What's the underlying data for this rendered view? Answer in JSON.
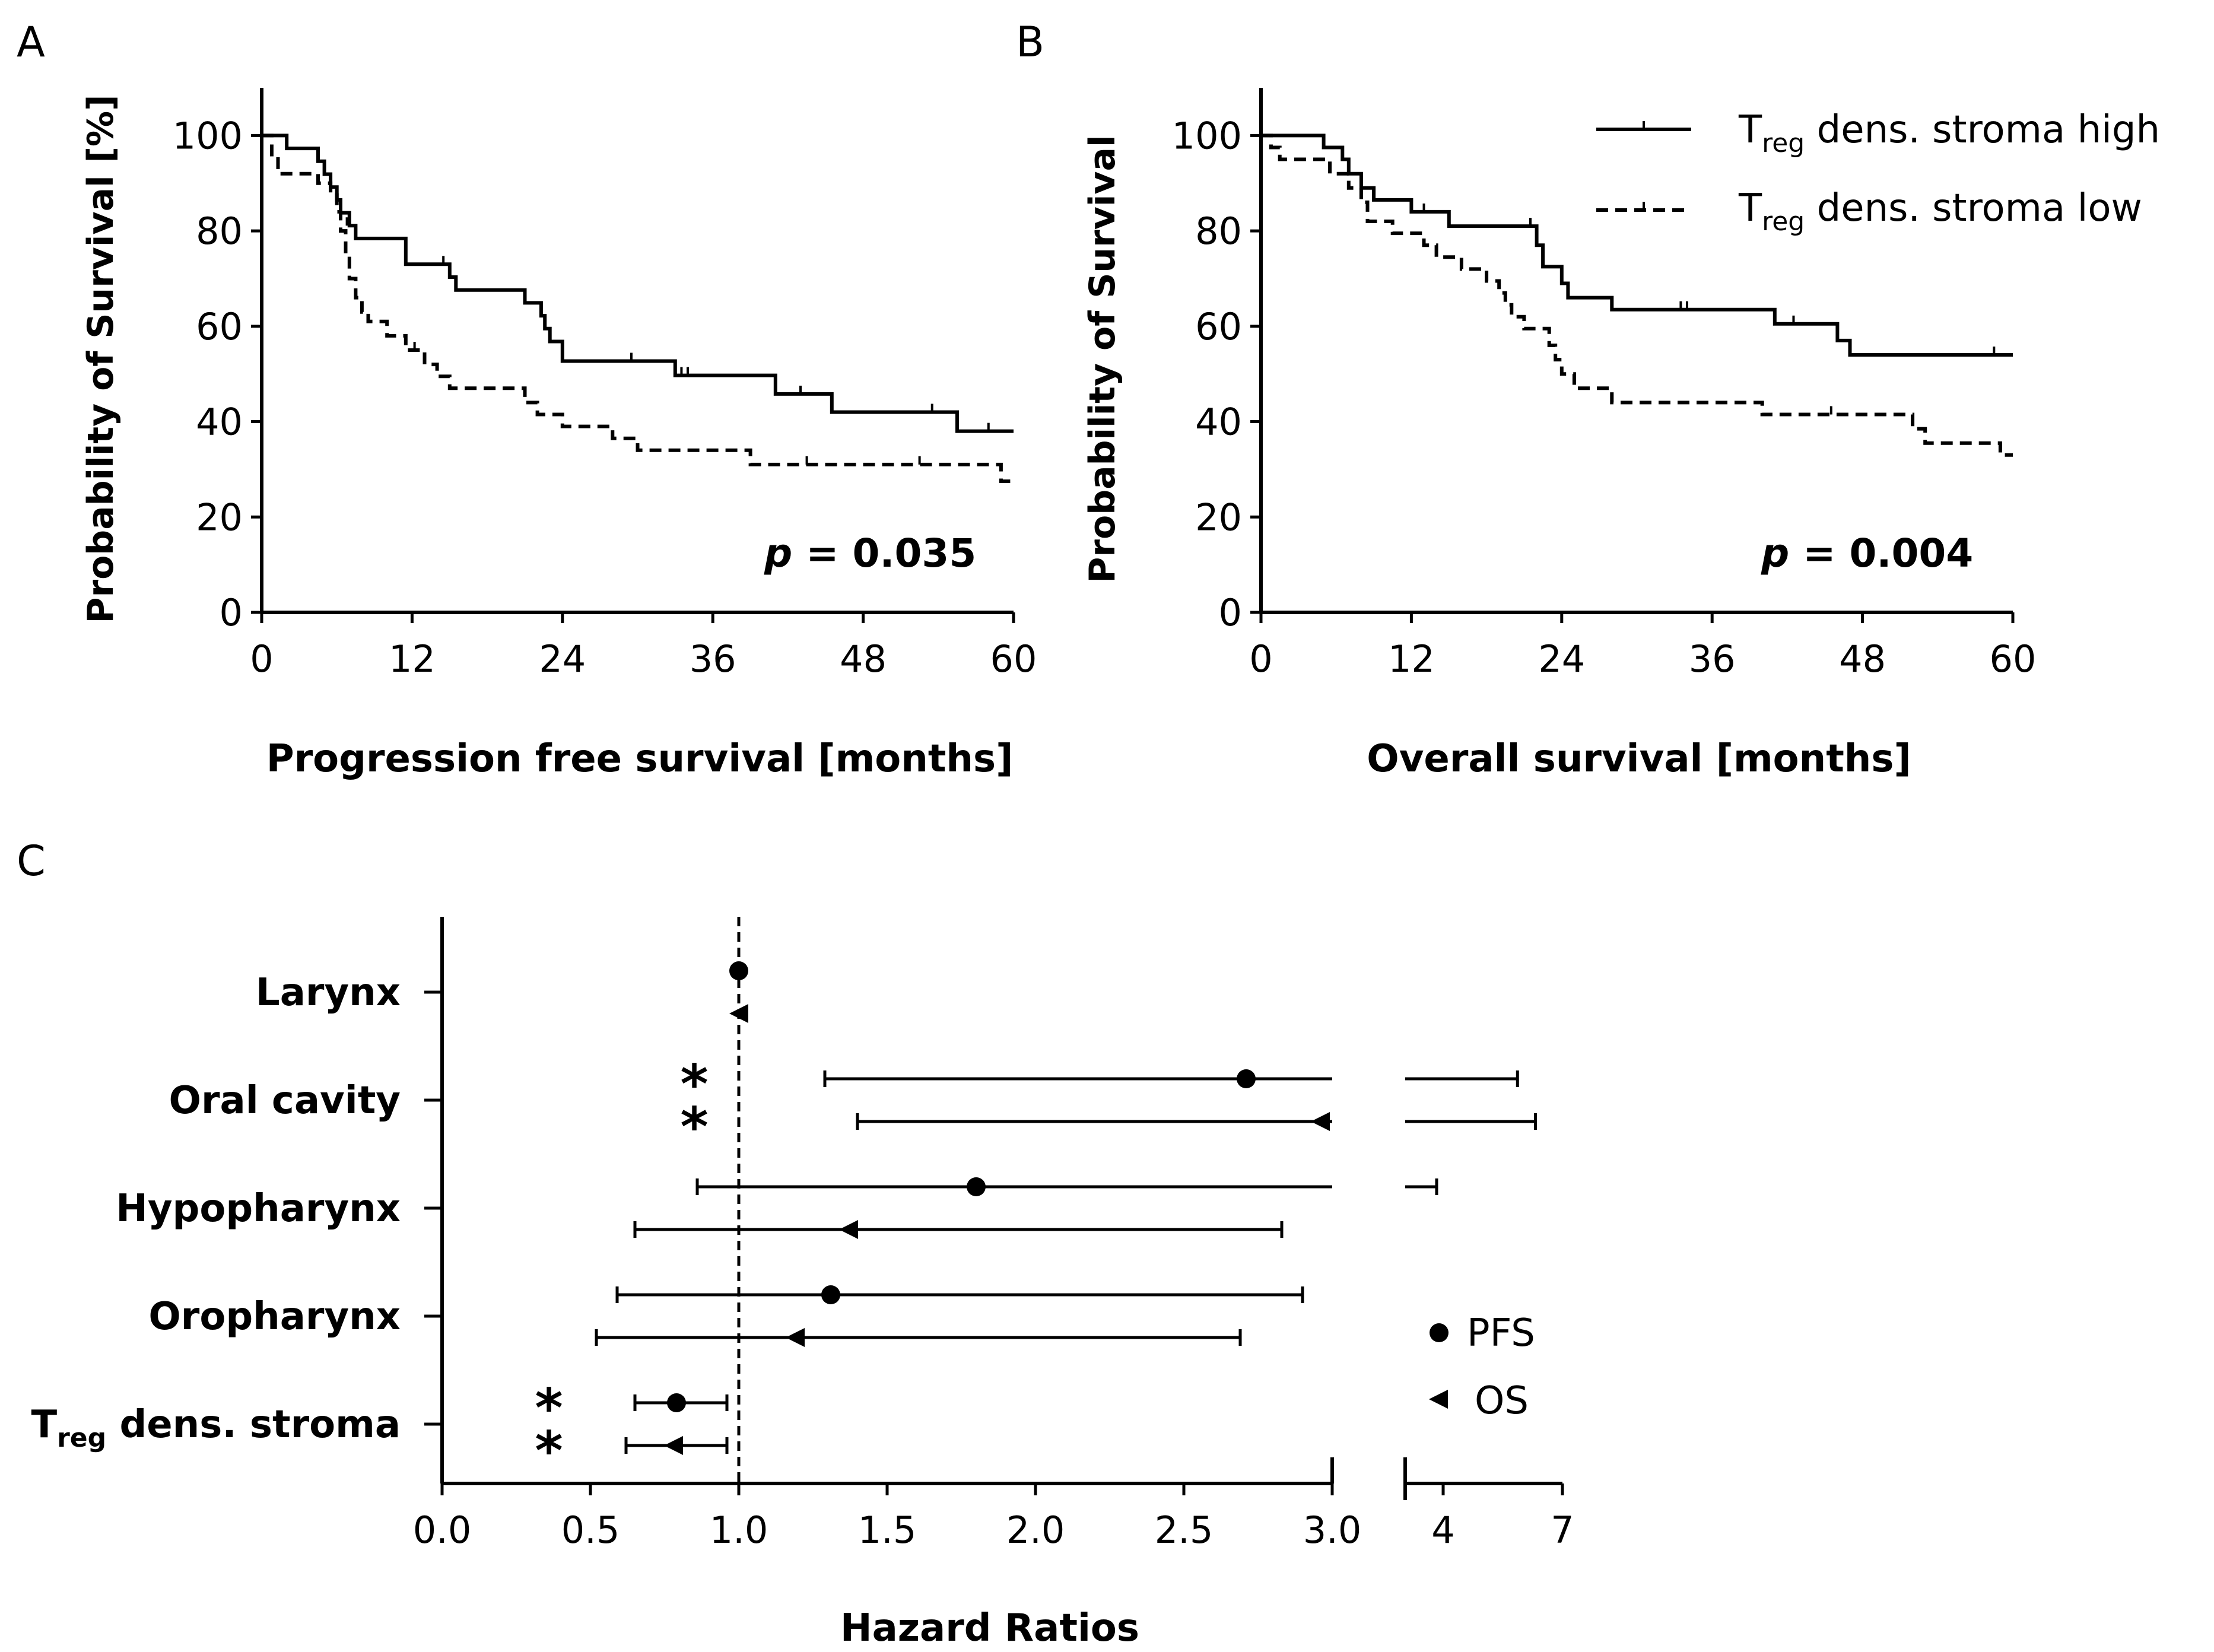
{
  "chart_data": [
    {
      "id": "A",
      "panel_label": "A",
      "type": "line",
      "subtype": "kaplan-meier",
      "xlabel": "Progression free survival [months]",
      "ylabel": "Probability of Survival [%]",
      "xlim": [
        0,
        60
      ],
      "ylim": [
        0,
        110
      ],
      "xticks": [
        0,
        12,
        24,
        36,
        48,
        60
      ],
      "yticks": [
        0,
        20,
        40,
        60,
        80,
        100
      ],
      "annotation": {
        "prefix": "p",
        "text": " = 0.035"
      },
      "series": [
        {
          "name": "high",
          "style": "solid",
          "steps": [
            [
              0,
              100
            ],
            [
              2,
              100
            ],
            [
              2,
              97.3
            ],
            [
              4.5,
              97.3
            ],
            [
              4.5,
              94.6
            ],
            [
              5,
              94.6
            ],
            [
              5,
              91.9
            ],
            [
              5.5,
              91.9
            ],
            [
              5.5,
              89.2
            ],
            [
              6,
              89.2
            ],
            [
              6,
              86.5
            ],
            [
              6.3,
              86.5
            ],
            [
              6.3,
              83.8
            ],
            [
              7,
              83.8
            ],
            [
              7,
              81.1
            ],
            [
              7.5,
              81.1
            ],
            [
              7.5,
              78.4
            ],
            [
              11.5,
              78.4
            ],
            [
              11.5,
              73
            ],
            [
              15,
              73
            ],
            [
              15,
              70.3
            ],
            [
              15.5,
              70.3
            ],
            [
              15.5,
              67.6
            ],
            [
              21,
              67.6
            ],
            [
              21,
              64.9
            ],
            [
              22.3,
              64.9
            ],
            [
              22.3,
              62.2
            ],
            [
              22.6,
              62.2
            ],
            [
              22.6,
              59.5
            ],
            [
              23,
              59.5
            ],
            [
              23,
              56.8
            ],
            [
              24,
              56.8
            ],
            [
              24,
              52.7
            ],
            [
              33,
              52.7
            ],
            [
              33,
              49.7
            ],
            [
              41,
              49.7
            ],
            [
              41,
              45.8
            ],
            [
              45.5,
              45.8
            ],
            [
              45.5,
              42
            ],
            [
              55.5,
              42
            ],
            [
              55.5,
              38
            ],
            [
              60,
              38
            ]
          ],
          "censors": [
            [
              6.8,
              81.1
            ],
            [
              14.5,
              73
            ],
            [
              29.5,
              52.7
            ],
            [
              33.5,
              49.7
            ],
            [
              34,
              49.7
            ],
            [
              43,
              45.8
            ],
            [
              53.5,
              42
            ],
            [
              58,
              38
            ]
          ]
        },
        {
          "name": "low",
          "style": "dashed",
          "steps": [
            [
              0,
              100
            ],
            [
              0.8,
              100
            ],
            [
              0.8,
              96
            ],
            [
              1.3,
              96
            ],
            [
              1.3,
              92
            ],
            [
              4.5,
              92
            ],
            [
              4.5,
              90
            ],
            [
              5.5,
              90
            ],
            [
              5.5,
              87.5
            ],
            [
              6,
              87.5
            ],
            [
              6,
              84
            ],
            [
              6.3,
              84
            ],
            [
              6.3,
              80
            ],
            [
              6.7,
              80
            ],
            [
              6.7,
              75
            ],
            [
              7,
              75
            ],
            [
              7,
              70
            ],
            [
              7.5,
              70
            ],
            [
              7.5,
              66
            ],
            [
              8,
              66
            ],
            [
              8,
              63
            ],
            [
              8.5,
              63
            ],
            [
              8.5,
              61
            ],
            [
              10,
              61
            ],
            [
              10,
              58
            ],
            [
              11.5,
              58
            ],
            [
              11.5,
              55
            ],
            [
              13,
              55
            ],
            [
              13,
              52
            ],
            [
              14,
              52
            ],
            [
              14,
              49.5
            ],
            [
              15,
              49.5
            ],
            [
              15,
              47
            ],
            [
              21,
              47
            ],
            [
              21,
              44
            ],
            [
              22,
              44
            ],
            [
              22,
              41.5
            ],
            [
              24,
              41.5
            ],
            [
              24,
              39
            ],
            [
              28,
              39
            ],
            [
              28,
              36.5
            ],
            [
              30,
              36.5
            ],
            [
              30,
              34
            ],
            [
              39,
              34
            ],
            [
              39,
              31
            ],
            [
              59,
              31
            ],
            [
              59,
              27.5
            ],
            [
              60,
              27.5
            ]
          ],
          "censors": [
            [
              12.2,
              55
            ],
            [
              43.5,
              31
            ],
            [
              52.5,
              31
            ]
          ]
        }
      ]
    },
    {
      "id": "B",
      "panel_label": "B",
      "type": "line",
      "subtype": "kaplan-meier",
      "xlabel": "Overall survival [months]",
      "ylabel": "Probability of Survival",
      "xlim": [
        0,
        60
      ],
      "ylim": [
        0,
        110
      ],
      "xticks": [
        0,
        12,
        24,
        36,
        48,
        60
      ],
      "yticks": [
        0,
        20,
        40,
        60,
        80,
        100
      ],
      "annotation": {
        "prefix": "p",
        "text": " = 0.004"
      },
      "legend": {
        "position": "top-right",
        "items": [
          {
            "series": "high",
            "main": "T",
            "sub": "reg",
            "rest": " dens. stroma high"
          },
          {
            "series": "low",
            "main": "T",
            "sub": "reg",
            "rest": " dens. stroma low"
          }
        ]
      },
      "series": [
        {
          "name": "high",
          "style": "solid",
          "steps": [
            [
              0,
              100
            ],
            [
              5,
              100
            ],
            [
              5,
              97.5
            ],
            [
              6.5,
              97.5
            ],
            [
              6.5,
              95
            ],
            [
              7,
              95
            ],
            [
              7,
              92
            ],
            [
              8,
              92
            ],
            [
              8,
              89
            ],
            [
              9,
              89
            ],
            [
              9,
              86.5
            ],
            [
              12,
              86.5
            ],
            [
              12,
              84
            ],
            [
              15,
              84
            ],
            [
              15,
              81
            ],
            [
              22,
              81
            ],
            [
              22,
              77
            ],
            [
              22.5,
              77
            ],
            [
              22.5,
              72.5
            ],
            [
              24,
              72.5
            ],
            [
              24,
              69
            ],
            [
              24.5,
              69
            ],
            [
              24.5,
              66
            ],
            [
              28,
              66
            ],
            [
              28,
              63.5
            ],
            [
              41,
              63.5
            ],
            [
              41,
              60.5
            ],
            [
              46,
              60.5
            ],
            [
              46,
              57
            ],
            [
              47,
              57
            ],
            [
              47,
              54
            ],
            [
              60,
              54
            ]
          ],
          "censors": [
            [
              13,
              84
            ],
            [
              21.5,
              81
            ],
            [
              33.5,
              63.5
            ],
            [
              34,
              63.5
            ],
            [
              42.5,
              60.5
            ],
            [
              58.5,
              54
            ]
          ]
        },
        {
          "name": "low",
          "style": "dashed",
          "steps": [
            [
              0,
              100
            ],
            [
              0.8,
              100
            ],
            [
              0.8,
              97.5
            ],
            [
              1.5,
              97.5
            ],
            [
              1.5,
              95
            ],
            [
              5.5,
              95
            ],
            [
              5.5,
              92
            ],
            [
              7,
              92
            ],
            [
              7,
              89
            ],
            [
              8,
              89
            ],
            [
              8,
              86
            ],
            [
              8.5,
              86
            ],
            [
              8.5,
              82
            ],
            [
              10.5,
              82
            ],
            [
              10.5,
              79.5
            ],
            [
              13,
              79.5
            ],
            [
              13,
              77
            ],
            [
              14,
              77
            ],
            [
              14,
              74.5
            ],
            [
              16,
              74.5
            ],
            [
              16,
              72
            ],
            [
              18,
              72
            ],
            [
              18,
              69.5
            ],
            [
              19,
              69.5
            ],
            [
              19,
              67
            ],
            [
              19.5,
              67
            ],
            [
              19.5,
              64.5
            ],
            [
              20,
              64.5
            ],
            [
              20,
              62
            ],
            [
              21,
              62
            ],
            [
              21,
              59.5
            ],
            [
              23,
              59.5
            ],
            [
              23,
              56
            ],
            [
              23.5,
              56
            ],
            [
              23.5,
              53
            ],
            [
              24,
              53
            ],
            [
              24,
              50
            ],
            [
              25,
              50
            ],
            [
              25,
              47
            ],
            [
              28,
              47
            ],
            [
              28,
              44
            ],
            [
              40,
              44
            ],
            [
              40,
              41.5
            ],
            [
              52,
              41.5
            ],
            [
              52,
              38.5
            ],
            [
              53,
              38.5
            ],
            [
              53,
              35.5
            ],
            [
              59,
              35.5
            ],
            [
              59,
              33
            ],
            [
              60,
              33
            ]
          ],
          "censors": [
            [
              45.5,
              41.5
            ]
          ]
        }
      ]
    },
    {
      "id": "C",
      "panel_label": "C",
      "type": "forest",
      "xlabel": "Hazard Ratios",
      "reference_line": 1.0,
      "xticks_main": [
        "0.0",
        "0.5",
        "1.0",
        "1.5",
        "2.0",
        "2.5",
        "3.0"
      ],
      "xticks_break": [
        "4",
        "7"
      ],
      "axis_break": {
        "main_range": [
          0,
          3.0
        ],
        "break_range": [
          3.5,
          7
        ]
      },
      "legend": {
        "position": "right",
        "items": [
          {
            "series": "PFS",
            "marker": "circle",
            "label": "PFS"
          },
          {
            "series": "OS",
            "marker": "triangle-left",
            "label": "OS"
          }
        ]
      },
      "categories": [
        {
          "label": "Larynx",
          "significant": false,
          "PFS": {
            "hr": 1.0,
            "lo": 1.0,
            "hi": 1.0
          },
          "OS": {
            "hr": 1.0,
            "lo": 1.0,
            "hi": 1.0
          }
        },
        {
          "label": "Oral cavity",
          "significant": true,
          "PFS": {
            "hr": 2.71,
            "lo": 1.29,
            "hi": 6.0
          },
          "OS": {
            "hr": 2.96,
            "lo": 1.4,
            "hi": 6.4
          }
        },
        {
          "label": "Hypopharynx",
          "significant": false,
          "PFS": {
            "hr": 1.8,
            "lo": 0.86,
            "hi": 4.2
          },
          "OS": {
            "hr": 1.37,
            "lo": 0.65,
            "hi": 2.83
          }
        },
        {
          "label": "Oropharynx",
          "significant": false,
          "PFS": {
            "hr": 1.31,
            "lo": 0.59,
            "hi": 2.9
          },
          "OS": {
            "hr": 1.19,
            "lo": 0.52,
            "hi": 2.69
          }
        },
        {
          "label_main": "T",
          "label_sub": "reg",
          "label_rest": " dens. stroma",
          "significant": true,
          "PFS": {
            "hr": 0.79,
            "lo": 0.65,
            "hi": 0.96
          },
          "OS": {
            "hr": 0.78,
            "lo": 0.62,
            "hi": 0.96
          }
        }
      ],
      "star": "*"
    }
  ]
}
